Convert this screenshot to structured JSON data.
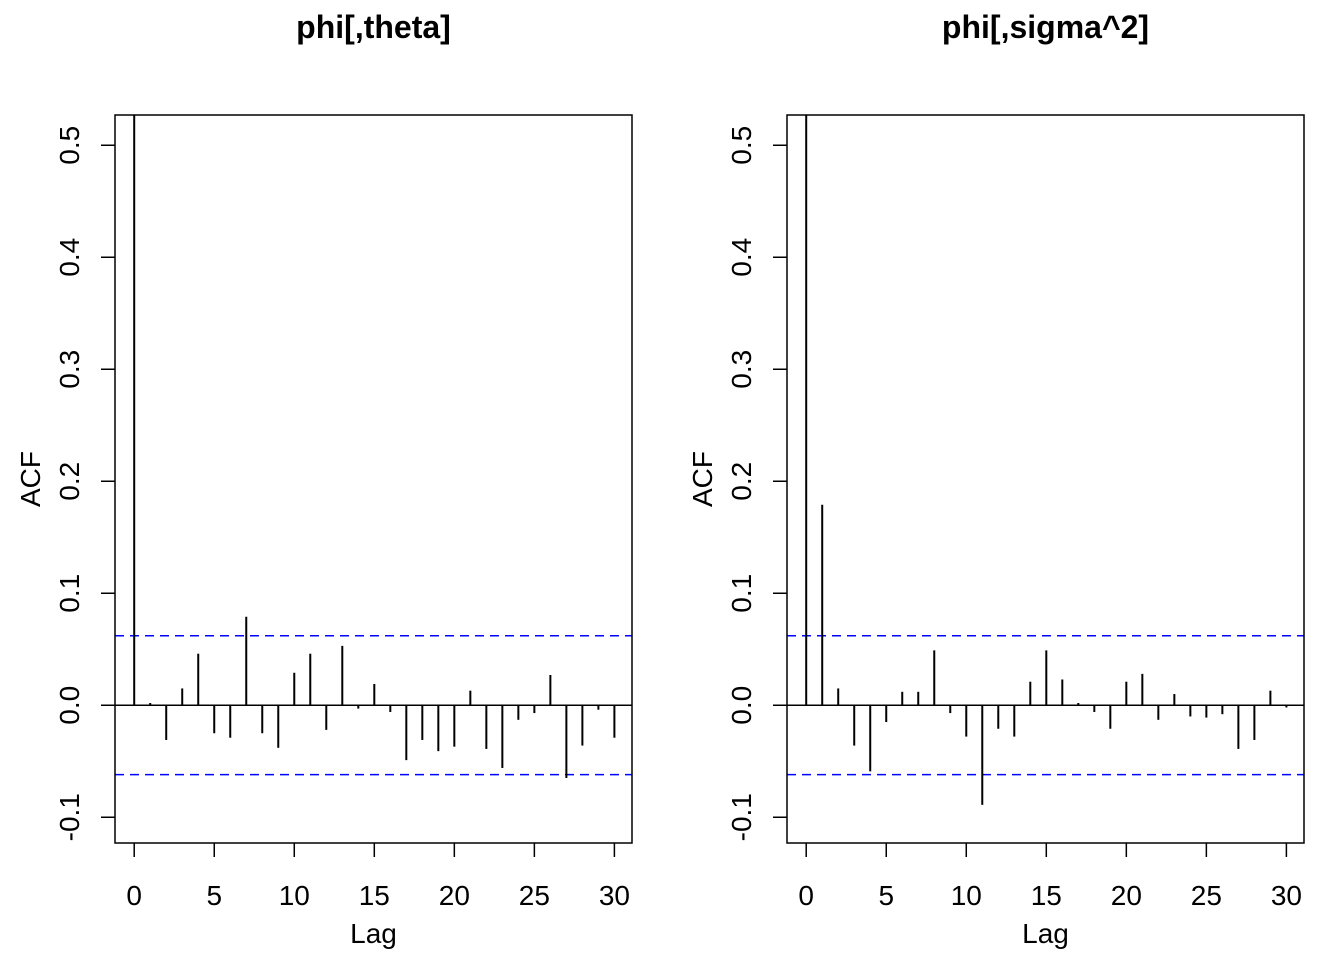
{
  "chart_data": [
    {
      "type": "acf",
      "title": "phi[,theta]",
      "xlabel": "Lag",
      "ylabel": "ACF",
      "color": "#000000",
      "band_color": "#0000ff",
      "x": [
        0,
        1,
        2,
        3,
        4,
        5,
        6,
        7,
        8,
        9,
        10,
        11,
        12,
        13,
        14,
        15,
        16,
        17,
        18,
        19,
        20,
        21,
        22,
        23,
        24,
        25,
        26,
        27,
        28,
        29,
        30
      ],
      "values": [
        1,
        0.002,
        -0.031,
        0.015,
        0.046,
        -0.025,
        -0.029,
        0.079,
        -0.025,
        -0.038,
        0.029,
        0.046,
        -0.022,
        0.053,
        -0.003,
        0.019,
        -0.006,
        -0.049,
        -0.031,
        -0.041,
        -0.037,
        0.013,
        -0.039,
        -0.056,
        -0.013,
        -0.007,
        0.027,
        -0.065,
        -0.036,
        -0.004,
        -0.029
      ],
      "bands": [
        0.062,
        -0.062
      ],
      "xlim": [
        -1.2,
        31.1
      ],
      "xticks": [
        0,
        5,
        10,
        15,
        20,
        25,
        30
      ],
      "ylim": [
        -0.123,
        0.527
      ],
      "yticks": [
        -0.1,
        {
          "value": 0,
          "label": "0.0"
        },
        0.1,
        0.2,
        0.3,
        0.4,
        0.5
      ]
    },
    {
      "type": "acf",
      "title": "phi[,sigma^2]",
      "xlabel": "Lag",
      "ylabel": "ACF",
      "color": "#000000",
      "band_color": "#0000ff",
      "x": [
        0,
        1,
        2,
        3,
        4,
        5,
        6,
        7,
        8,
        9,
        10,
        11,
        12,
        13,
        14,
        15,
        16,
        17,
        18,
        19,
        20,
        21,
        22,
        23,
        24,
        25,
        26,
        27,
        28,
        29,
        30
      ],
      "values": [
        1,
        0.179,
        0.015,
        -0.036,
        -0.059,
        -0.015,
        0.012,
        0.012,
        0.049,
        -0.007,
        -0.028,
        -0.089,
        -0.021,
        -0.028,
        0.021,
        0.049,
        0.023,
        0.002,
        -0.006,
        -0.021,
        0.021,
        0.028,
        -0.013,
        0.01,
        -0.01,
        -0.011,
        -0.008,
        -0.039,
        -0.031,
        0.013,
        -0.002
      ],
      "bands": [
        0.062,
        -0.062
      ],
      "xlim": [
        -1.2,
        31.1
      ],
      "xticks": [
        0,
        5,
        10,
        15,
        20,
        25,
        30
      ],
      "ylim": [
        -0.123,
        0.527
      ],
      "yticks": [
        -0.1,
        {
          "value": 0,
          "label": "0.0"
        },
        0.1,
        0.2,
        0.3,
        0.4,
        0.5
      ]
    }
  ]
}
